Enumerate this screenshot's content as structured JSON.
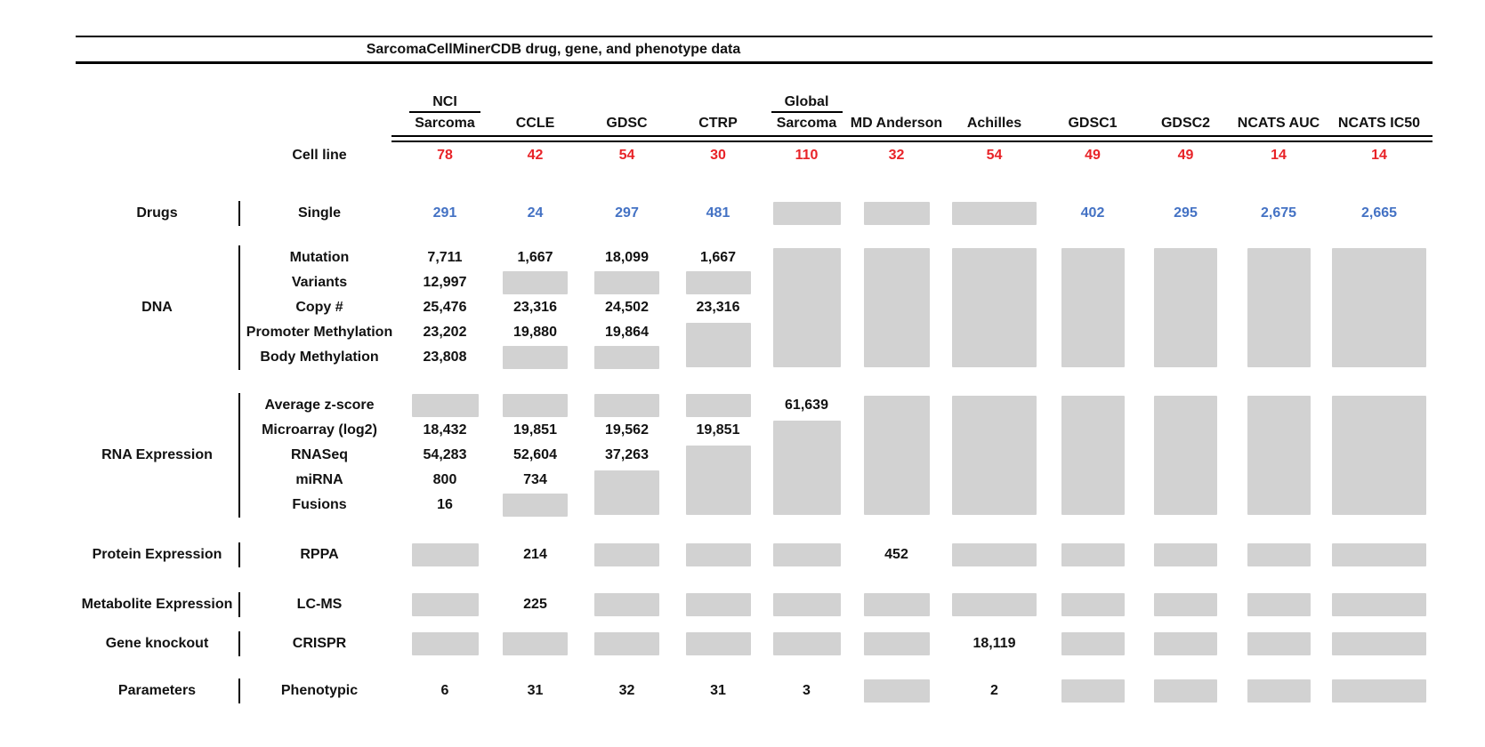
{
  "title": "SarcomaCellMinerCDB drug, gene, and phenotype data",
  "colors": {
    "red": "#e82328",
    "blue": "#4472c4",
    "gray": "#d2d2d2"
  },
  "columns": [
    {
      "top": "NCI",
      "label": "Sarcoma"
    },
    {
      "label": "CCLE"
    },
    {
      "label": "GDSC"
    },
    {
      "label": "CTRP"
    },
    {
      "top": "Global",
      "label": "Sarcoma"
    },
    {
      "label": "MD Anderson"
    },
    {
      "label": "Achilles"
    },
    {
      "label": "GDSC1"
    },
    {
      "label": "GDSC2"
    },
    {
      "label": "NCATS AUC"
    },
    {
      "label": "NCATS IC50"
    }
  ],
  "cell_line_row": {
    "label": "Cell line",
    "values": [
      "78",
      "42",
      "54",
      "30",
      "110",
      "32",
      "54",
      "49",
      "49",
      "14",
      "14"
    ]
  },
  "sections": [
    {
      "group": "Drugs",
      "rows": [
        {
          "label": "Single",
          "cells": [
            {
              "v": "291",
              "c": "blue"
            },
            {
              "v": "24",
              "c": "blue"
            },
            {
              "v": "297",
              "c": "blue"
            },
            {
              "v": "481",
              "c": "blue"
            },
            {
              "g": 1
            },
            {
              "g": 1
            },
            {
              "g": 1
            },
            {
              "v": "402",
              "c": "blue"
            },
            {
              "v": "295",
              "c": "blue"
            },
            {
              "v": "2,675",
              "c": "blue"
            },
            {
              "v": "2,665",
              "c": "blue"
            }
          ]
        }
      ]
    },
    {
      "group": "DNA",
      "rows": [
        {
          "label": "Mutation",
          "cells": [
            {
              "v": "7,711"
            },
            {
              "v": "1,667"
            },
            {
              "v": "18,099"
            },
            {
              "v": "1,667"
            },
            {
              "g": 5
            },
            {
              "g": 5
            },
            {
              "g": 5
            },
            {
              "g": 5
            },
            {
              "g": 5
            },
            {
              "g": 5
            },
            {
              "g": 5
            }
          ]
        },
        {
          "label": "Variants",
          "cells": [
            {
              "v": "12,997"
            },
            {
              "g": 1
            },
            {
              "g": 1
            },
            {
              "g": 1
            },
            null,
            null,
            null,
            null,
            null,
            null,
            null
          ]
        },
        {
          "label": "Copy #",
          "cells": [
            {
              "v": "25,476"
            },
            {
              "v": "23,316"
            },
            {
              "v": "24,502"
            },
            {
              "v": "23,316"
            },
            null,
            null,
            null,
            null,
            null,
            null,
            null
          ]
        },
        {
          "label": "Promoter Methylation",
          "cells": [
            {
              "v": "23,202"
            },
            {
              "v": "19,880"
            },
            {
              "v": "19,864"
            },
            {
              "g": 2
            },
            null,
            null,
            null,
            null,
            null,
            null,
            null
          ]
        },
        {
          "label": "Body Methylation",
          "cells": [
            {
              "v": "23,808"
            },
            {
              "g": 1
            },
            {
              "g": 1
            },
            null,
            null,
            null,
            null,
            null,
            null,
            null,
            null
          ]
        }
      ]
    },
    {
      "group": "RNA Expression",
      "rows": [
        {
          "label": "Average z-score",
          "cells": [
            {
              "g": 1
            },
            {
              "g": 1
            },
            {
              "g": 1
            },
            {
              "g": 1
            },
            {
              "v": "61,639"
            },
            {
              "g": 5
            },
            {
              "g": 5
            },
            {
              "g": 5
            },
            {
              "g": 5
            },
            {
              "g": 5
            },
            {
              "g": 5
            }
          ]
        },
        {
          "label": "Microarray (log2)",
          "cells": [
            {
              "v": "18,432"
            },
            {
              "v": "19,851"
            },
            {
              "v": "19,562"
            },
            {
              "v": "19,851"
            },
            {
              "g": 4
            },
            null,
            null,
            null,
            null,
            null,
            null
          ]
        },
        {
          "label": "RNASeq",
          "cells": [
            {
              "v": "54,283"
            },
            {
              "v": "52,604"
            },
            {
              "v": "37,263"
            },
            {
              "g": 3
            },
            null,
            null,
            null,
            null,
            null,
            null,
            null
          ]
        },
        {
          "label": "miRNA",
          "cells": [
            {
              "v": "800"
            },
            {
              "v": "734"
            },
            {
              "g": 2
            },
            null,
            null,
            null,
            null,
            null,
            null,
            null,
            null
          ]
        },
        {
          "label": "Fusions",
          "cells": [
            {
              "v": "16"
            },
            {
              "g": 1
            },
            null,
            null,
            null,
            null,
            null,
            null,
            null,
            null,
            null
          ]
        }
      ]
    },
    {
      "group": "Protein Expression",
      "rows": [
        {
          "label": "RPPA",
          "cells": [
            {
              "g": 1
            },
            {
              "v": "214"
            },
            {
              "g": 1
            },
            {
              "g": 1
            },
            {
              "g": 1
            },
            {
              "v": "452"
            },
            {
              "g": 1
            },
            {
              "g": 1
            },
            {
              "g": 1
            },
            {
              "g": 1
            },
            {
              "g": 1
            }
          ]
        }
      ]
    },
    {
      "group": "Metabolite Expression",
      "rows": [
        {
          "label": "LC-MS",
          "cells": [
            {
              "g": 1
            },
            {
              "v": "225"
            },
            {
              "g": 1
            },
            {
              "g": 1
            },
            {
              "g": 1
            },
            {
              "g": 1
            },
            {
              "g": 1
            },
            {
              "g": 1
            },
            {
              "g": 1
            },
            {
              "g": 1
            },
            {
              "g": 1
            }
          ]
        }
      ]
    },
    {
      "group": "Gene knockout",
      "rows": [
        {
          "label": "CRISPR",
          "cells": [
            {
              "g": 1
            },
            {
              "g": 1
            },
            {
              "g": 1
            },
            {
              "g": 1
            },
            {
              "g": 1
            },
            {
              "g": 1
            },
            {
              "v": "18,119"
            },
            {
              "g": 1
            },
            {
              "g": 1
            },
            {
              "g": 1
            },
            {
              "g": 1
            }
          ]
        }
      ]
    },
    {
      "group": "Parameters",
      "rows": [
        {
          "label": "Phenotypic",
          "cells": [
            {
              "v": "6"
            },
            {
              "v": "31"
            },
            {
              "v": "32"
            },
            {
              "v": "31"
            },
            {
              "v": "3"
            },
            {
              "g": 1
            },
            {
              "v": "2"
            },
            {
              "g": 1
            },
            {
              "g": 1
            },
            {
              "g": 1
            },
            {
              "g": 1
            }
          ]
        }
      ]
    }
  ],
  "chart_data": {
    "type": "table",
    "title": "SarcomaCellMinerCDB drug, gene, and phenotype data",
    "columns": [
      "NCI Sarcoma",
      "CCLE",
      "GDSC",
      "CTRP",
      "Global Sarcoma",
      "MD Anderson",
      "Achilles",
      "GDSC1",
      "GDSC2",
      "NCATS AUC",
      "NCATS IC50"
    ],
    "note_null_means": "gray box (no data)",
    "rows": [
      {
        "group": "",
        "label": "Cell line",
        "values": [
          78,
          42,
          54,
          30,
          110,
          32,
          54,
          49,
          49,
          14,
          14
        ]
      },
      {
        "group": "Drugs",
        "label": "Single",
        "values": [
          291,
          24,
          297,
          481,
          null,
          null,
          null,
          402,
          295,
          2675,
          2665
        ]
      },
      {
        "group": "DNA",
        "label": "Mutation",
        "values": [
          7711,
          1667,
          18099,
          1667,
          null,
          null,
          null,
          null,
          null,
          null,
          null
        ]
      },
      {
        "group": "DNA",
        "label": "Variants",
        "values": [
          12997,
          null,
          null,
          null,
          null,
          null,
          null,
          null,
          null,
          null,
          null
        ]
      },
      {
        "group": "DNA",
        "label": "Copy #",
        "values": [
          25476,
          23316,
          24502,
          23316,
          null,
          null,
          null,
          null,
          null,
          null,
          null
        ]
      },
      {
        "group": "DNA",
        "label": "Promoter Methylation",
        "values": [
          23202,
          19880,
          19864,
          null,
          null,
          null,
          null,
          null,
          null,
          null,
          null
        ]
      },
      {
        "group": "DNA",
        "label": "Body Methylation",
        "values": [
          23808,
          null,
          null,
          null,
          null,
          null,
          null,
          null,
          null,
          null,
          null
        ]
      },
      {
        "group": "RNA Expression",
        "label": "Average z-score",
        "values": [
          null,
          null,
          null,
          null,
          61639,
          null,
          null,
          null,
          null,
          null,
          null
        ]
      },
      {
        "group": "RNA Expression",
        "label": "Microarray (log2)",
        "values": [
          18432,
          19851,
          19562,
          19851,
          null,
          null,
          null,
          null,
          null,
          null,
          null
        ]
      },
      {
        "group": "RNA Expression",
        "label": "RNASeq",
        "values": [
          54283,
          52604,
          37263,
          null,
          null,
          null,
          null,
          null,
          null,
          null,
          null
        ]
      },
      {
        "group": "RNA Expression",
        "label": "miRNA",
        "values": [
          800,
          734,
          null,
          null,
          null,
          null,
          null,
          null,
          null,
          null,
          null
        ]
      },
      {
        "group": "RNA Expression",
        "label": "Fusions",
        "values": [
          16,
          null,
          null,
          null,
          null,
          null,
          null,
          null,
          null,
          null,
          null
        ]
      },
      {
        "group": "Protein Expression",
        "label": "RPPA",
        "values": [
          null,
          214,
          null,
          null,
          null,
          452,
          null,
          null,
          null,
          null,
          null
        ]
      },
      {
        "group": "Metabolite Expression",
        "label": "LC-MS",
        "values": [
          null,
          225,
          null,
          null,
          null,
          null,
          null,
          null,
          null,
          null,
          null
        ]
      },
      {
        "group": "Gene knockout",
        "label": "CRISPR",
        "values": [
          null,
          null,
          null,
          null,
          null,
          null,
          18119,
          null,
          null,
          null,
          null
        ]
      },
      {
        "group": "Parameters",
        "label": "Phenotypic",
        "values": [
          6,
          31,
          32,
          31,
          3,
          null,
          2,
          null,
          null,
          null,
          null
        ]
      }
    ]
  }
}
